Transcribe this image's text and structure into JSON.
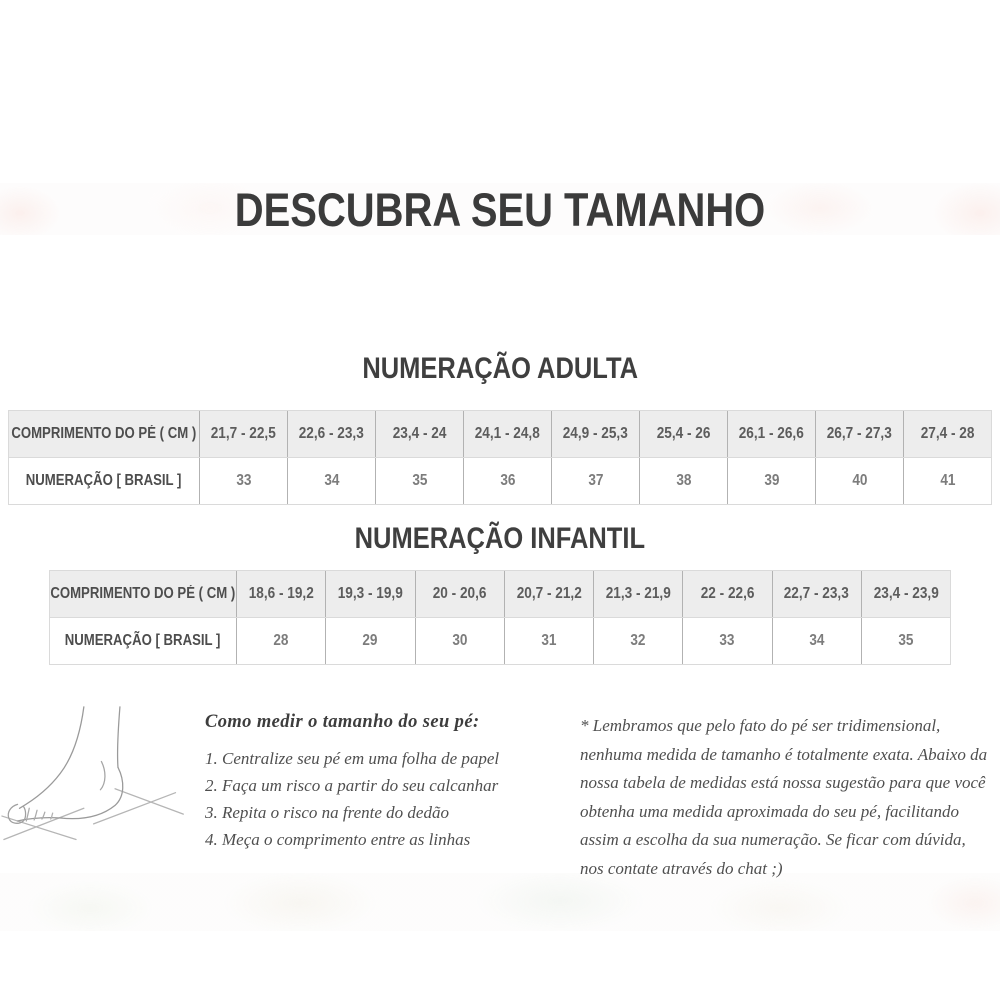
{
  "page": {
    "title": "DESCUBRA SEU TAMANHO"
  },
  "sections": {
    "adult": {
      "heading": "NUMERAÇÃO ADULTA",
      "rows": [
        {
          "label": "COMPRIMENTO DO PÉ ( CM )",
          "values": [
            "21,7 - 22,5",
            "22,6 - 23,3",
            "23,4 - 24",
            "24,1 - 24,8",
            "24,9 - 25,3",
            "25,4 - 26",
            "26,1 - 26,6",
            "26,7 - 27,3",
            "27,4 - 28"
          ]
        },
        {
          "label": "NUMERAÇÃO [ BRASIL ]",
          "values": [
            "33",
            "34",
            "35",
            "36",
            "37",
            "38",
            "39",
            "40",
            "41"
          ]
        }
      ]
    },
    "child": {
      "heading": "NUMERAÇÃO INFANTIL",
      "rows": [
        {
          "label": "COMPRIMENTO DO PÉ ( CM )",
          "values": [
            "18,6 - 19,2",
            "19,3 - 19,9",
            "20 - 20,6",
            "20,7 - 21,2",
            "21,3 - 21,9",
            "22 - 22,6",
            "22,7 - 23,3",
            "23,4 - 23,9"
          ]
        },
        {
          "label": "NUMERAÇÃO [ BRASIL ]",
          "values": [
            "28",
            "29",
            "30",
            "31",
            "32",
            "33",
            "34",
            "35"
          ]
        }
      ]
    }
  },
  "how_to": {
    "heading": "Como medir o tamanho do seu pé:",
    "steps": [
      "1. Centralize seu pé em uma folha de papel",
      "2. Faça um risco a partir do seu calcanhar",
      "3. Repita o risco na frente do dedão",
      "4. Meça o comprimento entre as linhas"
    ]
  },
  "note": {
    "text": "* Lembramos que pelo fato do pé ser tridimensional, nenhuma medida de tamanho é totalmente exata. Abaixo da nossa tabela de medidas está nossa sugestão para que você obtenha uma medida aproximada do seu pé, facilitando assim a escolha da sua numeração. Se ficar com dúvida, nos contate através do chat ;)"
  },
  "colors": {
    "title_text": "#3b3b3b",
    "table_header_bg": "#ededed",
    "table_inner_divider": "#b2b2b2",
    "table_outer_border": "#dadada",
    "range_text": "#5c5c5c",
    "size_text": "#7c7c7c",
    "serif_text": "#4f4f4f"
  }
}
